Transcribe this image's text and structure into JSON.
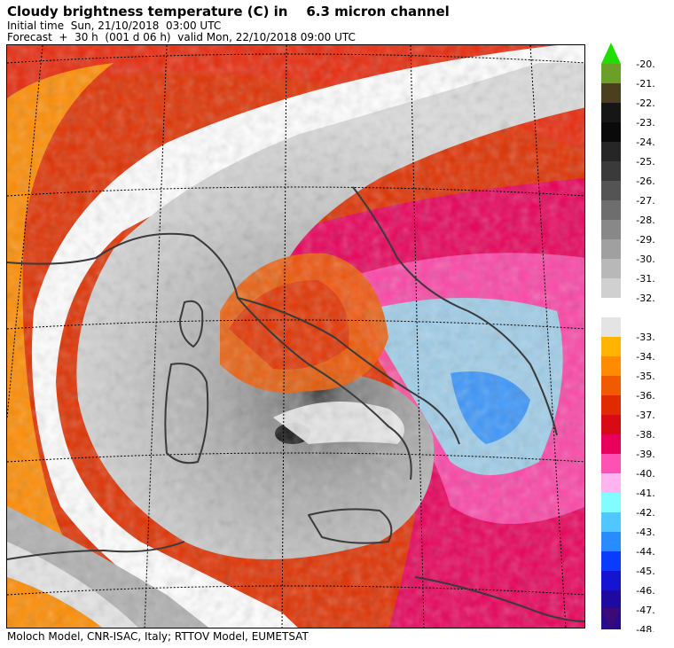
{
  "title": "Cloudy brightness temperature (C) in    6.3 micron channel",
  "initial_time": "Initial time  Sun, 21/10/2018  03:00 UTC",
  "forecast": "Forecast  +  30 h  (001 d 06 h)  valid Mon, 22/10/2018 09:00 UTC",
  "footer": "Moloch Model, CNR-ISAC, Italy; RTTOV Model, EUMETSAT",
  "colorbar": {
    "labels": [
      "-20.",
      "-21.",
      "-22.",
      "-23.",
      "-24.",
      "-25.",
      "-26.",
      "-27.",
      "-28.",
      "-29.",
      "-30.",
      "-31.",
      "-32.",
      "-33.",
      "-34.",
      "-35.",
      "-36.",
      "-37.",
      "-38.",
      "-39.",
      "-40.",
      "-41.",
      "-42.",
      "-43.",
      "-44.",
      "-45.",
      "-46.",
      "-47.",
      "-48."
    ],
    "colors": [
      "#6aa02a",
      "#4a4020",
      "#161616",
      "#0a0a0a",
      "#262626",
      "#3a3a3a",
      "#545454",
      "#6e6e6e",
      "#888888",
      "#a0a0a0",
      "#b8b8b8",
      "#d0d0d0",
      "#e4e4e4",
      "#ffb400",
      "#ff8c00",
      "#f05a00",
      "#e02a00",
      "#d80a14",
      "#e8005a",
      "#ff50b4",
      "#ffb4f0",
      "#82fcff",
      "#50c8ff",
      "#288cff",
      "#0a3cff",
      "#1414d2",
      "#1e0aa0",
      "#280a8c"
    ],
    "top_arrow_color": "#22dd00",
    "bottom_arrow_color": "#3c0a78"
  }
}
